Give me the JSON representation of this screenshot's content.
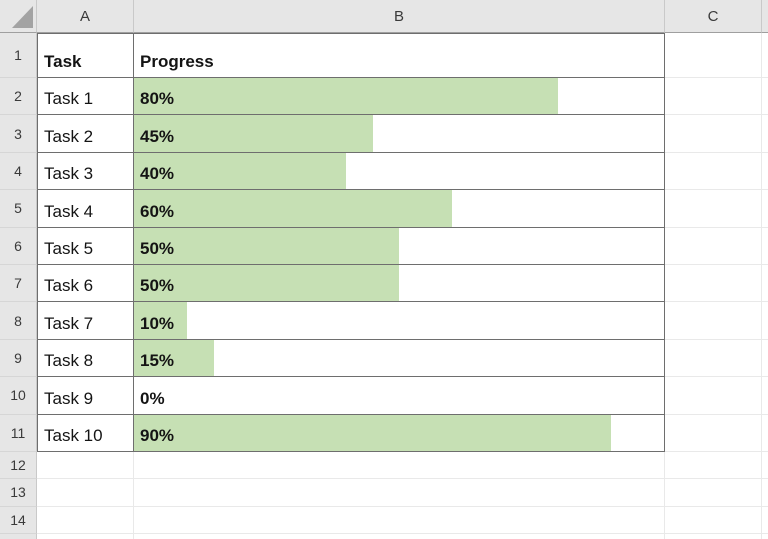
{
  "sheet": {
    "column_headers": [
      {
        "letter": "A"
      },
      {
        "letter": "B"
      },
      {
        "letter": "C"
      }
    ],
    "header_row": {
      "number": "1",
      "task_label": "Task",
      "progress_label": "Progress"
    },
    "rows": [
      {
        "number": "2",
        "task": "Task 1",
        "label": "80%",
        "pct": 80
      },
      {
        "number": "3",
        "task": "Task 2",
        "label": "45%",
        "pct": 45
      },
      {
        "number": "4",
        "task": "Task 3",
        "label": "40%",
        "pct": 40
      },
      {
        "number": "5",
        "task": "Task 4",
        "label": "60%",
        "pct": 60
      },
      {
        "number": "6",
        "task": "Task 5",
        "label": "50%",
        "pct": 50
      },
      {
        "number": "7",
        "task": "Task 6",
        "label": "50%",
        "pct": 50
      },
      {
        "number": "8",
        "task": "Task 7",
        "label": "10%",
        "pct": 10
      },
      {
        "number": "9",
        "task": "Task 8",
        "label": "15%",
        "pct": 15
      },
      {
        "number": "10",
        "task": "Task 9",
        "label": "0%",
        "pct": 0
      },
      {
        "number": "11",
        "task": "Task 10",
        "label": "90%",
        "pct": 90
      }
    ],
    "empty_rows": [
      {
        "number": "12"
      },
      {
        "number": "13"
      },
      {
        "number": "14"
      }
    ],
    "colors": {
      "data_bar_green": "#c6e0b4",
      "header_strip_bg": "#e6e6e6",
      "table_border": "#6e6e6e",
      "gridline": "#e9e9e9"
    }
  }
}
